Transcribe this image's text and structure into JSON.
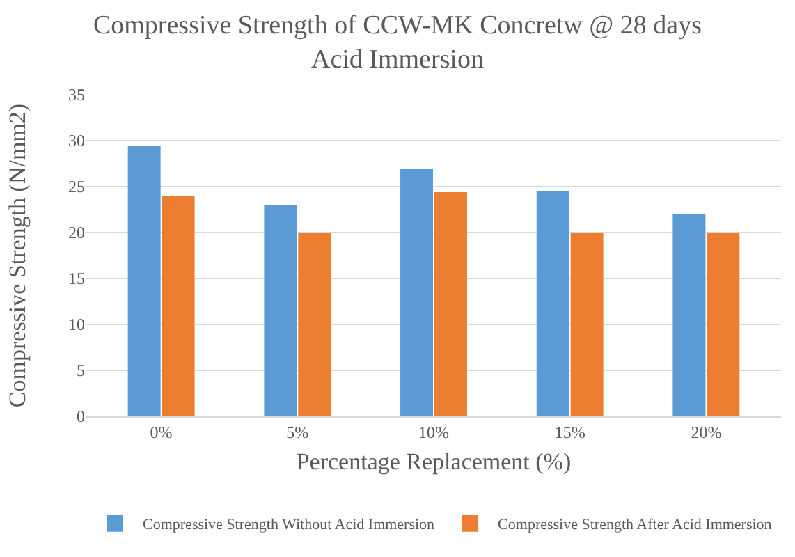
{
  "chart_data": {
    "type": "bar",
    "title": "Compressive Strength of CCW-MK Concretw @ 28 days\nAcid Immersion",
    "xlabel": "Percentage Replacement (%)",
    "ylabel": "Compressive Strength (N/mm2)",
    "categories": [
      "0%",
      "5%",
      "10%",
      "15%",
      "20%"
    ],
    "series": [
      {
        "name": "Compressive Strength Without Acid Immersion",
        "color": "#5b9bd5",
        "values": [
          29.4,
          23.0,
          26.9,
          24.5,
          22.0
        ]
      },
      {
        "name": "Compressive Strength After Acid Immersion",
        "color": "#ed7d31",
        "values": [
          24.0,
          20.0,
          24.4,
          20.0,
          20.0
        ]
      }
    ],
    "ylim": [
      0,
      35
    ],
    "yticks": [
      0,
      5,
      10,
      15,
      20,
      25,
      30,
      35
    ],
    "grid": "y",
    "legend": "bottom"
  }
}
